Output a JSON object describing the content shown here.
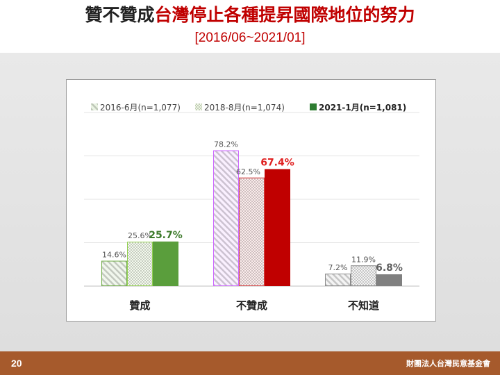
{
  "slide": {
    "title_part1": "贊不贊成",
    "title_part2": "台灣停止各種提昇國際地位的努力",
    "subtitle": "[2016/06~2021/01]",
    "page_number": "20",
    "organization": "財團法人台灣民意基金會",
    "colors": {
      "accent": "#c00000",
      "footer": "#a65a2c"
    }
  },
  "chart_data": {
    "type": "bar",
    "title": "",
    "xlabel": "",
    "ylabel": "",
    "ylim": [
      0,
      100
    ],
    "grid": true,
    "legend_position": "top",
    "categories": [
      "贊成",
      "不贊成",
      "不知道"
    ],
    "series": [
      {
        "name": "2016-6月(n=1,077)",
        "values": [
          14.6,
          78.2,
          7.2
        ],
        "labels": [
          "14.6%",
          "78.2%",
          "7.2%"
        ]
      },
      {
        "name": "2018-8月(n=1,074)",
        "values": [
          25.6,
          62.5,
          11.9
        ],
        "labels": [
          "25.6%",
          "62.5%",
          "11.9%"
        ]
      },
      {
        "name": "2021-1月(n=1,081)",
        "values": [
          25.7,
          67.4,
          6.8
        ],
        "labels": [
          "25.7%",
          "67.4%",
          "6.8%"
        ]
      }
    ],
    "category_colors": [
      [
        "#70ad47",
        "#92d050",
        "#5a9e3c"
      ],
      [
        "#cc66ff",
        "#d64545",
        "#c00000"
      ],
      [
        "#8c8c8c",
        "#8c8c8c",
        "#808080"
      ]
    ],
    "legend_colors": [
      "#70ad47",
      "#92d050",
      "#2e7d32"
    ]
  }
}
